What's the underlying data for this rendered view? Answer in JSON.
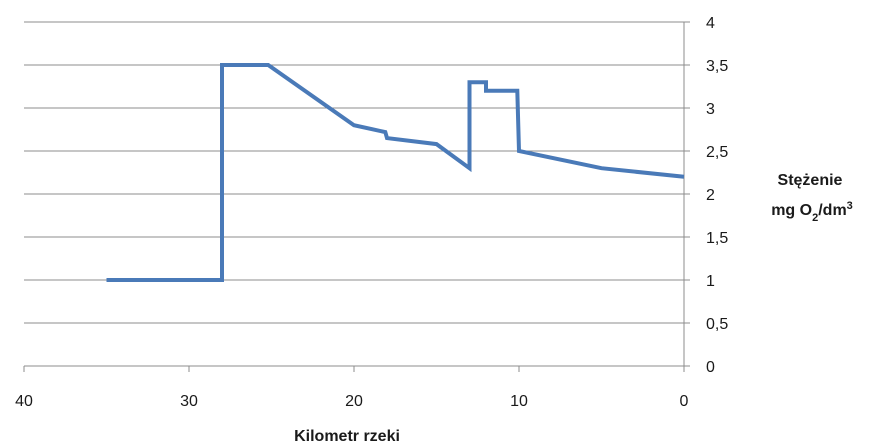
{
  "chart_data": {
    "type": "line",
    "title": "",
    "xlabel": "Kilometr rzeki",
    "ylabel_line1": "Stężenie",
    "ylabel_line2_html": "mg O<tspan baseline-shift=\"sub\" font-size=\"11\">2</tspan>/dm<tspan baseline-shift=\"super\" font-size=\"11\">3</tspan>",
    "xlim": [
      40,
      0
    ],
    "ylim": [
      0,
      4
    ],
    "x_ticks": [
      "40",
      "30",
      "20",
      "10",
      "0"
    ],
    "y_ticks": [
      "0",
      "0,5",
      "1",
      "1,5",
      "2",
      "2,5",
      "3",
      "3,5",
      "4"
    ],
    "grid": true,
    "y_axis_side": "right",
    "line_color": "#4a7ab8",
    "series": [
      {
        "x": [
          35,
          28,
          28,
          25.2,
          20,
          18.1,
          18,
          15,
          13,
          13,
          12,
          12,
          10.1,
          10,
          5,
          0
        ],
        "y": [
          1.0,
          1.0,
          3.5,
          3.5,
          2.8,
          2.72,
          2.65,
          2.58,
          2.3,
          3.3,
          3.3,
          3.2,
          3.2,
          2.5,
          2.3,
          2.2
        ]
      }
    ]
  }
}
